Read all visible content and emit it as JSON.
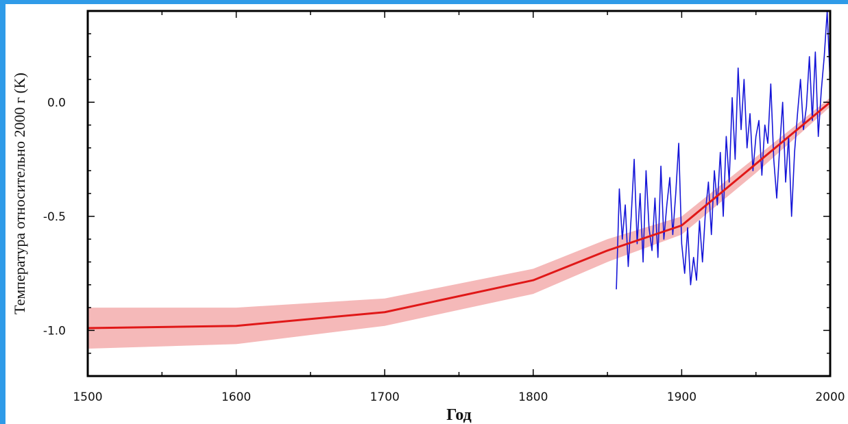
{
  "chart_data": {
    "type": "line",
    "title": "",
    "xlabel": "Год",
    "ylabel": "Температура относительно 2000 г (K)",
    "xlim": [
      1500,
      2000
    ],
    "ylim": [
      -1.2,
      0.4
    ],
    "x_ticks": [
      1500,
      1600,
      1700,
      1800,
      1900,
      2000
    ],
    "x_tick_labels": [
      "1500",
      "1600",
      "1700",
      "1800",
      "1900",
      "2000"
    ],
    "y_ticks": [
      -1.0,
      -0.5,
      0.0
    ],
    "y_tick_labels": [
      "-1.0",
      "-0.5",
      "0.0"
    ],
    "grid": false,
    "legend": "none",
    "colors": {
      "trend_line": "#e01818",
      "uncertainty_band": "#f5b9b9",
      "instrumental": "#1515d8",
      "frame_background": "#2f9be8"
    },
    "series": [
      {
        "kind": "trend",
        "x": [
          1500,
          1600,
          1700,
          1800,
          1850,
          1900,
          1950,
          2000
        ],
        "y": [
          -0.99,
          -0.98,
          -0.92,
          -0.78,
          -0.65,
          -0.54,
          -0.27,
          0.0
        ],
        "band_upper": [
          -0.9,
          -0.9,
          -0.86,
          -0.73,
          -0.6,
          -0.5,
          -0.24,
          0.02
        ],
        "band_lower": [
          -1.08,
          -1.06,
          -0.98,
          -0.84,
          -0.7,
          -0.58,
          -0.31,
          -0.02
        ]
      },
      {
        "kind": "instrumental",
        "x": [
          1856,
          1858,
          1860,
          1862,
          1864,
          1866,
          1868,
          1870,
          1872,
          1874,
          1876,
          1878,
          1880,
          1882,
          1884,
          1886,
          1888,
          1890,
          1892,
          1894,
          1896,
          1898,
          1900,
          1902,
          1904,
          1906,
          1908,
          1910,
          1912,
          1914,
          1916,
          1918,
          1920,
          1922,
          1924,
          1926,
          1928,
          1930,
          1932,
          1934,
          1936,
          1938,
          1940,
          1942,
          1944,
          1946,
          1948,
          1950,
          1952,
          1954,
          1956,
          1958,
          1960,
          1962,
          1964,
          1966,
          1968,
          1970,
          1972,
          1974,
          1976,
          1978,
          1980,
          1982,
          1984,
          1986,
          1988,
          1990,
          1992,
          1994,
          1996,
          1998,
          2000
        ],
        "y": [
          -0.82,
          -0.38,
          -0.6,
          -0.45,
          -0.72,
          -0.5,
          -0.25,
          -0.62,
          -0.4,
          -0.7,
          -0.3,
          -0.55,
          -0.65,
          -0.42,
          -0.68,
          -0.28,
          -0.6,
          -0.45,
          -0.33,
          -0.58,
          -0.4,
          -0.18,
          -0.62,
          -0.75,
          -0.55,
          -0.8,
          -0.68,
          -0.78,
          -0.52,
          -0.7,
          -0.48,
          -0.35,
          -0.58,
          -0.3,
          -0.45,
          -0.22,
          -0.5,
          -0.15,
          -0.35,
          0.02,
          -0.25,
          0.15,
          -0.12,
          0.1,
          -0.2,
          -0.05,
          -0.3,
          -0.15,
          -0.08,
          -0.32,
          -0.1,
          -0.18,
          0.08,
          -0.25,
          -0.42,
          -0.2,
          0.0,
          -0.35,
          -0.15,
          -0.5,
          -0.22,
          -0.05,
          0.1,
          -0.12,
          -0.02,
          0.2,
          -0.08,
          0.22,
          -0.15,
          0.05,
          0.2,
          0.4,
          0.08
        ]
      }
    ]
  }
}
